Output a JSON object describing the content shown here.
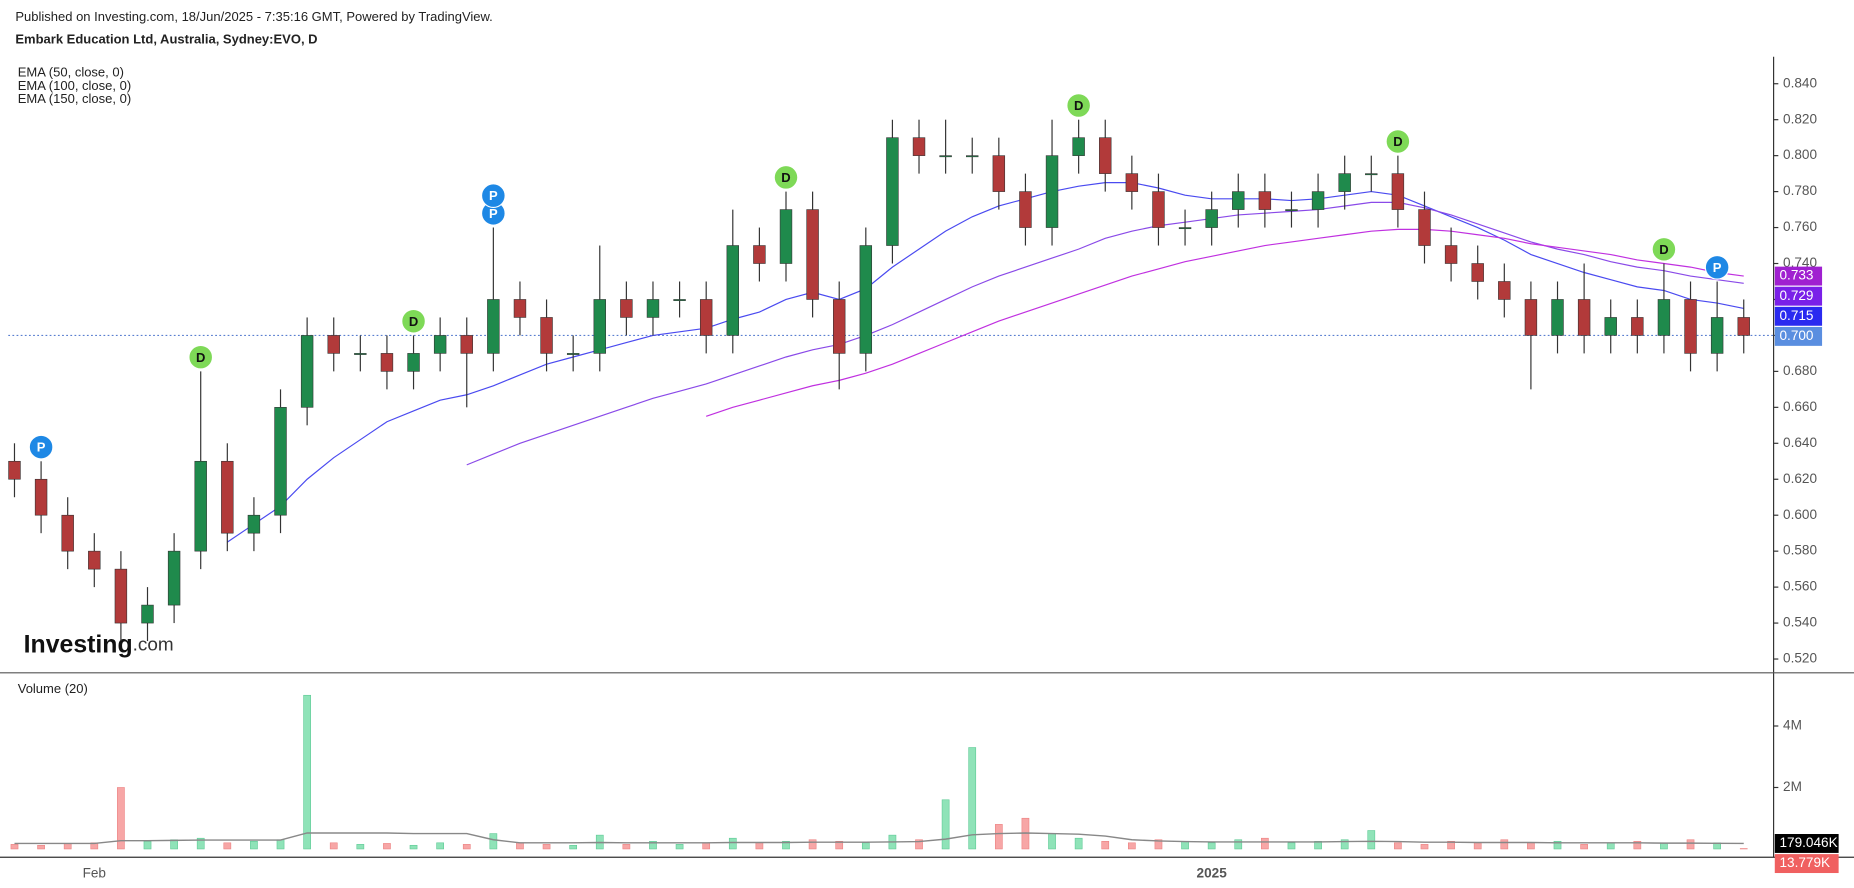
{
  "header": {
    "published": "Published on Investing.com, 18/Jun/2025 - 7:35:16 GMT, Powered by TradingView.",
    "symbol": "Embark Education Ltd, Australia, Sydney:EVO, D"
  },
  "logo": {
    "brand": "Investing",
    "suffix": ".com"
  },
  "chart_data": [
    {
      "type": "candlestick",
      "categories": [
        null,
        null,
        null,
        "Feb",
        null,
        null,
        null,
        null,
        null,
        null,
        null,
        null,
        null,
        null,
        null,
        null,
        null,
        null,
        null,
        null,
        null,
        null,
        null,
        null,
        null,
        null,
        null,
        null,
        null,
        null,
        null,
        null,
        null,
        null,
        null,
        null,
        null,
        null,
        null,
        null,
        null,
        null,
        null,
        null,
        null,
        "2025",
        null,
        null,
        null,
        null,
        null,
        null,
        null,
        null,
        null,
        null,
        null,
        null,
        null,
        null,
        null,
        null,
        null,
        null,
        null,
        null
      ],
      "open": [
        0.63,
        0.62,
        0.6,
        0.58,
        0.57,
        0.54,
        0.55,
        0.58,
        0.63,
        0.59,
        0.6,
        0.66,
        0.7,
        0.69,
        0.69,
        0.68,
        0.69,
        0.7,
        0.69,
        0.72,
        0.71,
        0.69,
        0.69,
        0.72,
        0.71,
        0.72,
        0.72,
        0.7,
        0.75,
        0.74,
        0.77,
        0.72,
        0.69,
        0.75,
        0.81,
        0.8,
        0.8,
        0.8,
        0.78,
        0.76,
        0.8,
        0.81,
        0.79,
        0.78,
        0.76,
        0.76,
        0.77,
        0.78,
        0.77,
        0.77,
        0.78,
        0.79,
        0.79,
        0.77,
        0.75,
        0.74,
        0.73,
        0.72,
        0.7,
        0.72,
        0.7,
        0.71,
        0.7,
        0.72,
        0.69,
        0.71
      ],
      "high": [
        0.64,
        0.63,
        0.61,
        0.59,
        0.58,
        0.56,
        0.59,
        0.68,
        0.64,
        0.61,
        0.67,
        0.71,
        0.71,
        0.7,
        0.7,
        0.7,
        0.71,
        0.71,
        0.76,
        0.73,
        0.72,
        0.7,
        0.75,
        0.73,
        0.73,
        0.73,
        0.73,
        0.77,
        0.76,
        0.78,
        0.78,
        0.73,
        0.76,
        0.82,
        0.82,
        0.82,
        0.81,
        0.81,
        0.79,
        0.82,
        0.82,
        0.82,
        0.8,
        0.79,
        0.77,
        0.78,
        0.79,
        0.79,
        0.78,
        0.79,
        0.8,
        0.8,
        0.8,
        0.78,
        0.76,
        0.75,
        0.74,
        0.73,
        0.73,
        0.74,
        0.72,
        0.72,
        0.74,
        0.73,
        0.73,
        0.72
      ],
      "low": [
        0.61,
        0.59,
        0.57,
        0.56,
        0.53,
        0.53,
        0.54,
        0.57,
        0.58,
        0.58,
        0.59,
        0.65,
        0.68,
        0.68,
        0.67,
        0.67,
        0.68,
        0.66,
        0.68,
        0.7,
        0.68,
        0.68,
        0.68,
        0.7,
        0.7,
        0.71,
        0.69,
        0.69,
        0.73,
        0.73,
        0.71,
        0.67,
        0.68,
        0.74,
        0.79,
        0.79,
        0.79,
        0.77,
        0.75,
        0.75,
        0.79,
        0.78,
        0.77,
        0.75,
        0.75,
        0.75,
        0.76,
        0.76,
        0.76,
        0.76,
        0.77,
        0.78,
        0.76,
        0.74,
        0.73,
        0.72,
        0.71,
        0.67,
        0.69,
        0.69,
        0.69,
        0.69,
        0.69,
        0.68,
        0.68,
        0.69
      ],
      "close": [
        0.62,
        0.6,
        0.58,
        0.57,
        0.54,
        0.55,
        0.58,
        0.63,
        0.59,
        0.6,
        0.66,
        0.7,
        0.69,
        0.69,
        0.68,
        0.69,
        0.7,
        0.69,
        0.72,
        0.71,
        0.69,
        0.69,
        0.72,
        0.71,
        0.72,
        0.72,
        0.7,
        0.75,
        0.74,
        0.77,
        0.72,
        0.69,
        0.75,
        0.81,
        0.8,
        0.8,
        0.8,
        0.78,
        0.76,
        0.8,
        0.81,
        0.79,
        0.78,
        0.76,
        0.76,
        0.77,
        0.78,
        0.77,
        0.77,
        0.78,
        0.79,
        0.79,
        0.77,
        0.75,
        0.74,
        0.73,
        0.72,
        0.7,
        0.72,
        0.7,
        0.71,
        0.7,
        0.72,
        0.69,
        0.71,
        0.7
      ],
      "up_color": "#1f8a4c",
      "down_color": "#b23a3a",
      "series": [
        {
          "name": "EMA (50, close, 0)",
          "color": "#4a4af0",
          "values": [
            null,
            null,
            null,
            null,
            null,
            null,
            null,
            null,
            0.585,
            0.595,
            0.605,
            0.62,
            0.632,
            0.642,
            0.652,
            0.658,
            0.664,
            0.667,
            0.672,
            0.678,
            0.684,
            0.688,
            0.692,
            0.696,
            0.7,
            0.702,
            0.704,
            0.709,
            0.713,
            0.72,
            0.724,
            0.72,
            0.726,
            0.738,
            0.748,
            0.758,
            0.766,
            0.772,
            0.776,
            0.78,
            0.783,
            0.785,
            0.785,
            0.782,
            0.778,
            0.776,
            0.776,
            0.776,
            0.775,
            0.776,
            0.778,
            0.78,
            0.778,
            0.772,
            0.766,
            0.76,
            0.753,
            0.745,
            0.74,
            0.735,
            0.731,
            0.727,
            0.725,
            0.72,
            0.718,
            0.715
          ]
        },
        {
          "name": "EMA (100, close, 0)",
          "color": "#8a4ae8",
          "values": [
            null,
            null,
            null,
            null,
            null,
            null,
            null,
            null,
            null,
            null,
            null,
            null,
            null,
            null,
            null,
            null,
            null,
            0.628,
            0.634,
            0.64,
            0.645,
            0.65,
            0.655,
            0.66,
            0.665,
            0.669,
            0.673,
            0.678,
            0.683,
            0.688,
            0.692,
            0.695,
            0.7,
            0.706,
            0.713,
            0.72,
            0.727,
            0.733,
            0.738,
            0.743,
            0.748,
            0.754,
            0.758,
            0.761,
            0.763,
            0.765,
            0.767,
            0.768,
            0.769,
            0.77,
            0.772,
            0.774,
            0.774,
            0.771,
            0.767,
            0.762,
            0.757,
            0.752,
            0.748,
            0.745,
            0.741,
            0.738,
            0.736,
            0.733,
            0.731,
            0.729
          ]
        },
        {
          "name": "EMA (150, close, 0)",
          "color": "#c030e0",
          "values": [
            null,
            null,
            null,
            null,
            null,
            null,
            null,
            null,
            null,
            null,
            null,
            null,
            null,
            null,
            null,
            null,
            null,
            null,
            null,
            null,
            null,
            null,
            null,
            null,
            null,
            null,
            0.655,
            0.66,
            0.664,
            0.668,
            0.672,
            0.675,
            0.679,
            0.684,
            0.69,
            0.696,
            0.702,
            0.708,
            0.713,
            0.718,
            0.723,
            0.728,
            0.733,
            0.737,
            0.741,
            0.744,
            0.747,
            0.75,
            0.752,
            0.754,
            0.756,
            0.758,
            0.759,
            0.759,
            0.758,
            0.756,
            0.754,
            0.751,
            0.749,
            0.747,
            0.745,
            0.742,
            0.74,
            0.738,
            0.735,
            0.733
          ]
        }
      ],
      "events": [
        null,
        "P",
        null,
        null,
        null,
        null,
        null,
        "D",
        null,
        null,
        null,
        null,
        null,
        null,
        null,
        "D",
        null,
        null,
        [
          "P",
          "P"
        ],
        null,
        null,
        null,
        null,
        null,
        null,
        null,
        null,
        null,
        null,
        "D",
        null,
        null,
        null,
        null,
        null,
        null,
        null,
        null,
        null,
        null,
        "D",
        null,
        null,
        null,
        null,
        null,
        null,
        null,
        null,
        null,
        null,
        null,
        "D",
        null,
        null,
        null,
        null,
        null,
        null,
        null,
        null,
        null,
        "D",
        null,
        "P",
        null
      ],
      "event_colors": {
        "D": "#7ed957",
        "P": "#1e88e5"
      },
      "price_tags": [
        {
          "value": 0.733,
          "color": "#a020d0"
        },
        {
          "value": 0.729,
          "color": "#7a20e8"
        },
        {
          "value": 0.715,
          "color": "#2a2af0"
        },
        {
          "value": 0.7,
          "label": "0.700",
          "color": "#5a8ee0"
        }
      ],
      "ylim": [
        0.513,
        0.855
      ],
      "yticks": [
        {
          "value": 0.52,
          "label": "0.520"
        },
        {
          "value": 0.54,
          "label": "0.540"
        },
        {
          "value": 0.56,
          "label": "0.560"
        },
        {
          "value": 0.58,
          "label": "0.580"
        },
        {
          "value": 0.6,
          "label": "0.600"
        },
        {
          "value": 0.62,
          "label": "0.620"
        },
        {
          "value": 0.64,
          "label": "0.640"
        },
        {
          "value": 0.66,
          "label": "0.660"
        },
        {
          "value": 0.68,
          "label": "0.680"
        },
        {
          "value": 0.7,
          "label": "0.700"
        },
        {
          "value": 0.72,
          "label": "0.720"
        },
        {
          "value": 0.74,
          "label": "0.740"
        },
        {
          "value": 0.76,
          "label": "0.760"
        },
        {
          "value": 0.78,
          "label": "0.780"
        },
        {
          "value": 0.8,
          "label": "0.800"
        },
        {
          "value": 0.82,
          "label": "0.820"
        },
        {
          "value": 0.84,
          "label": "0.840"
        }
      ],
      "grid": false
    },
    {
      "type": "bar",
      "title": "Volume (20)",
      "values": [
        150000,
        120000,
        180000,
        200000,
        2000000,
        250000,
        300000,
        350000,
        200000,
        250000,
        300000,
        5000000,
        200000,
        150000,
        180000,
        120000,
        200000,
        150000,
        500000,
        200000,
        150000,
        120000,
        450000,
        150000,
        250000,
        150000,
        200000,
        350000,
        200000,
        250000,
        300000,
        250000,
        200000,
        450000,
        300000,
        1600000,
        3300000,
        800000,
        1000000,
        500000,
        350000,
        250000,
        200000,
        300000,
        250000,
        200000,
        300000,
        350000,
        200000,
        250000,
        300000,
        600000,
        200000,
        150000,
        250000,
        200000,
        300000,
        200000,
        250000,
        150000,
        200000,
        250000,
        200000,
        300000,
        200000,
        13779
      ],
      "up_color": "#8fe3b8",
      "down_color": "#f7a6a6",
      "series": [
        {
          "color": "#888888",
          "values": [
            180000,
            180000,
            180000,
            180000,
            270000,
            270000,
            280000,
            290000,
            290000,
            290000,
            290000,
            520000,
            520000,
            520000,
            520000,
            500000,
            500000,
            500000,
            300000,
            200000,
            200000,
            200000,
            210000,
            200000,
            200000,
            200000,
            200000,
            210000,
            210000,
            210000,
            220000,
            220000,
            220000,
            230000,
            240000,
            320000,
            460000,
            500000,
            520000,
            500000,
            480000,
            420000,
            300000,
            260000,
            240000,
            230000,
            230000,
            230000,
            230000,
            230000,
            240000,
            250000,
            240000,
            220000,
            220000,
            210000,
            210000,
            210000,
            200000,
            200000,
            200000,
            200000,
            190000,
            190000,
            185000,
            179046
          ]
        }
      ],
      "tags": [
        {
          "value": 179046,
          "label": "179.046K",
          "color": "#000000"
        },
        {
          "value": 13779,
          "label": "13.779K",
          "color": "#f06060"
        }
      ],
      "ylim": [
        0,
        5500000
      ],
      "yticks": [
        {
          "value": 2000000,
          "label": "2M"
        },
        {
          "value": 4000000,
          "label": "4M"
        }
      ]
    }
  ]
}
